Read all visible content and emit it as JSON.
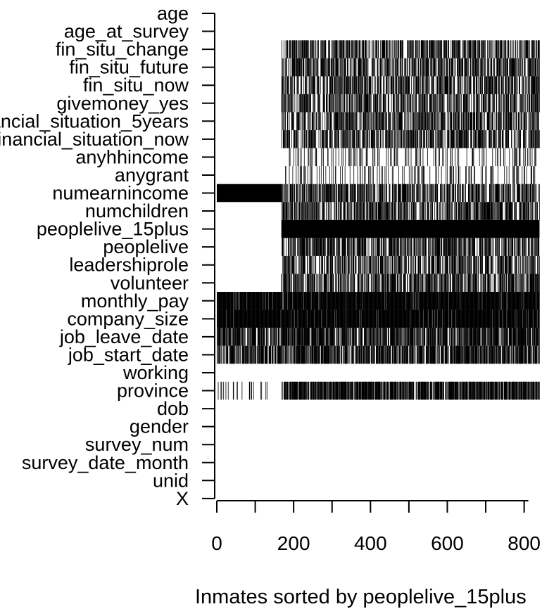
{
  "chart_data": {
    "type": "heatmap",
    "description_of_marks": "missingness pattern: black = missing value for that variable/record",
    "xlabel": "Inmates sorted by peoplelive_15plus",
    "xlim": [
      0,
      840
    ],
    "xticks": [
      0,
      100,
      200,
      300,
      400,
      500,
      600,
      700,
      800
    ],
    "xtick_labels": [
      "0",
      "",
      "200",
      "",
      "400",
      "",
      "600",
      "",
      "800"
    ],
    "variables": [
      "age",
      "age_at_survey",
      "fin_situ_change",
      "fin_situ_future",
      "fin_situ_now",
      "givemoney_yes",
      "financial_situation_5years",
      "financial_situation_now",
      "anyhhincome",
      "anygrant",
      "numearnincome",
      "numchildren",
      "peoplelive_15plus",
      "peoplelive",
      "leadershiprole",
      "volunteer",
      "monthly_pay",
      "company_size",
      "job_leave_date",
      "job_start_date",
      "working",
      "province",
      "dob",
      "gender",
      "survey_num",
      "survey_date_month",
      "unid",
      "X"
    ],
    "missing_spans": {
      "age": [],
      "age_at_survey": [],
      "fin_situ_change": [
        [
          168,
          840,
          0.55
        ]
      ],
      "fin_situ_future": [
        [
          168,
          840,
          0.55
        ]
      ],
      "fin_situ_now": [
        [
          168,
          840,
          0.55
        ]
      ],
      "givemoney_yes": [
        [
          168,
          840,
          0.55
        ]
      ],
      "financial_situation_5years": [
        [
          168,
          840,
          0.55
        ]
      ],
      "financial_situation_now": [
        [
          168,
          840,
          0.55
        ]
      ],
      "anyhhincome": [
        [
          178,
          840,
          0.18
        ]
      ],
      "anygrant": [
        [
          178,
          840,
          0.18
        ]
      ],
      "numearnincome": [
        [
          0,
          168,
          1.0
        ],
        [
          168,
          840,
          0.55
        ]
      ],
      "numchildren": [
        [
          168,
          840,
          0.55
        ]
      ],
      "peoplelive_15plus": [
        [
          168,
          840,
          1.0
        ]
      ],
      "peoplelive": [
        [
          168,
          840,
          0.55
        ]
      ],
      "leadershiprole": [
        [
          168,
          840,
          0.55
        ]
      ],
      "volunteer": [
        [
          168,
          840,
          0.55
        ]
      ],
      "monthly_pay": [
        [
          0,
          840,
          0.95
        ]
      ],
      "company_size": [
        [
          0,
          840,
          0.95
        ]
      ],
      "job_leave_date": [
        [
          0,
          840,
          0.7
        ]
      ],
      "job_start_date": [
        [
          0,
          840,
          0.7
        ]
      ],
      "working": [],
      "province": [
        [
          0,
          130,
          0.08
        ],
        [
          130,
          155,
          0.05
        ],
        [
          168,
          840,
          0.8
        ]
      ],
      "dob": [],
      "gender": [],
      "survey_num": [],
      "survey_date_month": [],
      "unid": [],
      "X": []
    }
  }
}
